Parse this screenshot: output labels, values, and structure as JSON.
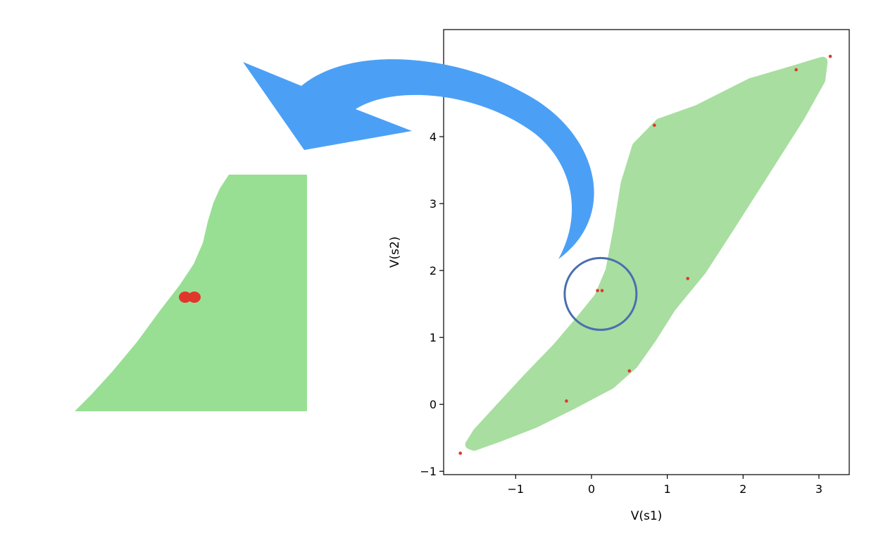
{
  "chart_data": {
    "type": "scatter",
    "title": "",
    "xlabel": "V(s1)",
    "ylabel": "V(s2)",
    "xlim": [
      -1.95,
      3.4
    ],
    "ylim": [
      -1.05,
      5.6
    ],
    "xticks": [
      -1,
      0,
      1,
      2,
      3
    ],
    "xtick_labels": [
      "−1",
      "0",
      "1",
      "2",
      "3"
    ],
    "yticks": [
      -1,
      0,
      1,
      2,
      3,
      4
    ],
    "ytick_labels": [
      "−1",
      "0",
      "1",
      "2",
      "3",
      "4"
    ],
    "grid": false,
    "legend": "none",
    "series": [
      {
        "marker": "dense cloud",
        "color": "#a8dea0",
        "region_outline": [
          [
            -1.6,
            -0.6
          ],
          [
            -1.5,
            -0.42
          ],
          [
            -1.2,
            -0.05
          ],
          [
            -0.85,
            0.38
          ],
          [
            -0.45,
            0.85
          ],
          [
            -0.15,
            1.25
          ],
          [
            0.1,
            1.6
          ],
          [
            0.25,
            2.0
          ],
          [
            0.35,
            2.6
          ],
          [
            0.45,
            3.3
          ],
          [
            0.6,
            3.85
          ],
          [
            0.9,
            4.2
          ],
          [
            1.4,
            4.4
          ],
          [
            2.1,
            4.8
          ],
          [
            2.7,
            5.0
          ],
          [
            3.05,
            5.12
          ],
          [
            3.02,
            4.85
          ],
          [
            2.75,
            4.3
          ],
          [
            2.3,
            3.5
          ],
          [
            1.85,
            2.7
          ],
          [
            1.45,
            2.0
          ],
          [
            1.05,
            1.45
          ],
          [
            0.8,
            1.0
          ],
          [
            0.55,
            0.6
          ],
          [
            0.25,
            0.3
          ],
          [
            -0.25,
            0.0
          ],
          [
            -0.75,
            -0.28
          ],
          [
            -1.25,
            -0.5
          ],
          [
            -1.55,
            -0.62
          ]
        ]
      },
      {
        "marker": "point",
        "color": "#e0362c",
        "x": [
          -1.73,
          -0.33,
          0.08,
          0.14,
          0.5,
          0.83,
          1.27,
          2.7,
          3.15
        ],
        "y": [
          -0.73,
          0.05,
          1.7,
          1.7,
          0.5,
          4.17,
          1.88,
          5.0,
          5.2
        ]
      }
    ],
    "annotations": {
      "highlight_circle": {
        "x": 0.12,
        "y": 1.65,
        "color": "#4a6fb0"
      },
      "zoom_arrow_color": "#4ba0f5",
      "zoom_inset": {
        "fill": "#98df94",
        "point_color": "#e0362c"
      }
    }
  }
}
